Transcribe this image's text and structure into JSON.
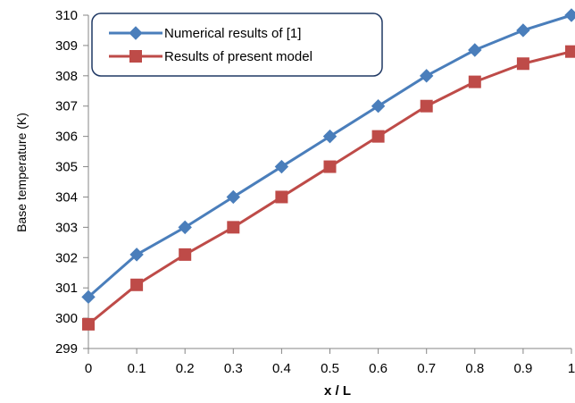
{
  "chart_data": {
    "type": "line",
    "title": "",
    "xlabel": "x / L",
    "ylabel": "Base temperature (K)",
    "x": [
      0,
      0.1,
      0.2,
      0.3,
      0.4,
      0.5,
      0.6,
      0.7,
      0.8,
      0.9,
      1
    ],
    "x_tick_labels": [
      "0",
      "0.1",
      "0.2",
      "0.3",
      "0.4",
      "0.5",
      "0.6",
      "0.7",
      "0.8",
      "0.9",
      "1"
    ],
    "xlim": [
      0,
      1
    ],
    "ylim": [
      299,
      310
    ],
    "y_ticks": [
      299,
      300,
      301,
      302,
      303,
      304,
      305,
      306,
      307,
      308,
      309,
      310
    ],
    "grid": false,
    "legend_position": "top-left",
    "series": [
      {
        "name": "Numerical results of [1]",
        "marker": "diamond",
        "color": "#4a7ebb",
        "values": [
          300.7,
          302.1,
          303.0,
          304.0,
          305.0,
          306.0,
          307.0,
          308.0,
          308.85,
          309.5,
          310.0
        ]
      },
      {
        "name": "Results of present model",
        "marker": "square",
        "color": "#be4b48",
        "values": [
          299.8,
          301.1,
          302.1,
          303.0,
          304.0,
          305.0,
          306.0,
          307.0,
          307.8,
          308.4,
          308.8
        ]
      }
    ]
  }
}
